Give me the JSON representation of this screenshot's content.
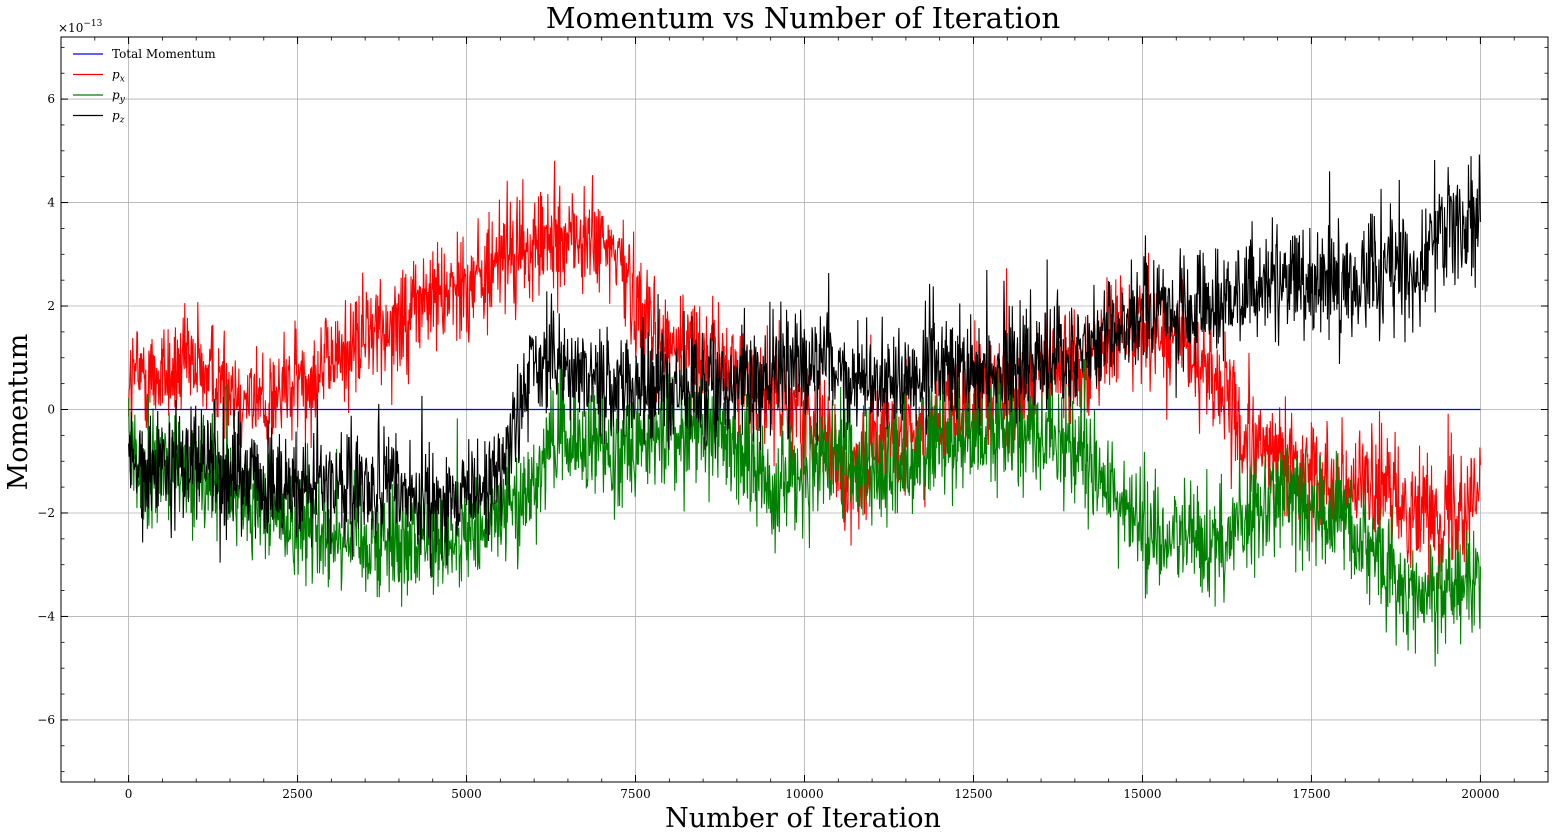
{
  "chart_data": {
    "type": "line",
    "title": "Momentum vs Number of Iteration",
    "xlabel": "Number of Iteration",
    "ylabel": "Momentum",
    "y_multiplier": "×10",
    "y_multiplier_exp": "−13",
    "xlim": [
      -1000,
      21000
    ],
    "ylim": [
      -7.2,
      7.2
    ],
    "x_ticks": [
      0,
      2500,
      5000,
      7500,
      10000,
      12500,
      15000,
      17500,
      20000
    ],
    "x_tick_labels": [
      "0",
      "2500",
      "5000",
      "7500",
      "10000",
      "12500",
      "15000",
      "17500",
      "20000"
    ],
    "y_ticks": [
      -6,
      -4,
      -2,
      0,
      2,
      4,
      6
    ],
    "y_tick_labels": [
      "−6",
      "−4",
      "−2",
      "0",
      "2",
      "4",
      "6"
    ],
    "grid": true,
    "legend_position": "top-left",
    "x_range": [
      0,
      20000
    ],
    "series": [
      {
        "name": "Total Momentum",
        "symbol": "",
        "sub": "",
        "color": "#0000ff",
        "noise": 0,
        "trend": [
          [
            0,
            0
          ],
          [
            20000,
            0
          ]
        ]
      },
      {
        "name": "p_x",
        "symbol": "p",
        "sub": "x",
        "color": "#ff0000",
        "noise": 0.55,
        "trend": [
          [
            0,
            0.6
          ],
          [
            1000,
            0.8
          ],
          [
            2000,
            0.1
          ],
          [
            2600,
            0.6
          ],
          [
            3500,
            1.4
          ],
          [
            4500,
            2.2
          ],
          [
            5500,
            2.8
          ],
          [
            6500,
            3.4
          ],
          [
            7200,
            3.0
          ],
          [
            7800,
            1.4
          ],
          [
            8600,
            1.0
          ],
          [
            9500,
            0.3
          ],
          [
            10300,
            -0.3
          ],
          [
            10600,
            -1.6
          ],
          [
            11000,
            -0.6
          ],
          [
            12000,
            -0.3
          ],
          [
            13000,
            0.4
          ],
          [
            14000,
            0.9
          ],
          [
            15000,
            1.7
          ],
          [
            16000,
            0.8
          ],
          [
            16500,
            -0.6
          ],
          [
            17500,
            -1.2
          ],
          [
            18500,
            -1.6
          ],
          [
            19500,
            -2.1
          ],
          [
            20000,
            -1.4
          ]
        ]
      },
      {
        "name": "p_y",
        "symbol": "p",
        "sub": "y",
        "color": "#008000",
        "noise": 0.55,
        "trend": [
          [
            0,
            -1.0
          ],
          [
            1000,
            -1.4
          ],
          [
            2000,
            -1.9
          ],
          [
            3000,
            -2.4
          ],
          [
            4000,
            -2.5
          ],
          [
            5000,
            -2.5
          ],
          [
            5800,
            -1.8
          ],
          [
            6200,
            -0.7
          ],
          [
            7000,
            -0.7
          ],
          [
            7800,
            -0.6
          ],
          [
            8700,
            -0.3
          ],
          [
            9500,
            -1.5
          ],
          [
            10500,
            -1.0
          ],
          [
            11200,
            -1.2
          ],
          [
            12000,
            -0.6
          ],
          [
            13000,
            -0.4
          ],
          [
            14000,
            -0.7
          ],
          [
            15000,
            -2.4
          ],
          [
            16000,
            -2.7
          ],
          [
            17000,
            -1.6
          ],
          [
            18000,
            -2.1
          ],
          [
            19000,
            -3.6
          ],
          [
            20000,
            -3.2
          ]
        ]
      },
      {
        "name": "p_z",
        "symbol": "p",
        "sub": "z",
        "color": "#000000",
        "noise": 0.55,
        "trend": [
          [
            0,
            -1.1
          ],
          [
            1000,
            -0.9
          ],
          [
            2000,
            -1.5
          ],
          [
            3000,
            -1.4
          ],
          [
            4000,
            -1.6
          ],
          [
            5000,
            -1.8
          ],
          [
            5500,
            -1.2
          ],
          [
            6000,
            1.0
          ],
          [
            7000,
            0.5
          ],
          [
            8000,
            0.3
          ],
          [
            9000,
            0.6
          ],
          [
            10000,
            0.8
          ],
          [
            11000,
            0.5
          ],
          [
            12000,
            0.9
          ],
          [
            13000,
            0.8
          ],
          [
            14000,
            1.1
          ],
          [
            15000,
            1.8
          ],
          [
            16000,
            2.0
          ],
          [
            17000,
            2.5
          ],
          [
            18000,
            2.5
          ],
          [
            19000,
            2.8
          ],
          [
            20000,
            3.8
          ]
        ]
      }
    ]
  }
}
